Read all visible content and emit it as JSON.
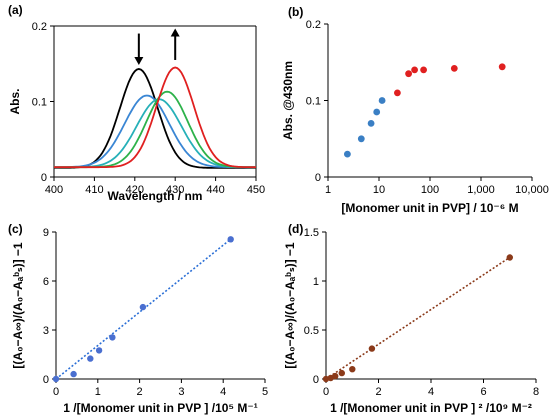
{
  "chart_data": [
    {
      "type": "line",
      "panel_label": "(a)",
      "xlabel": "Wavelength / nm",
      "ylabel": "Abs.",
      "xlim": [
        400,
        450
      ],
      "ylim": [
        0,
        0.2
      ],
      "xticks": [
        400,
        410,
        420,
        430,
        440,
        450
      ],
      "xtick_labels": [
        "400",
        "410",
        "420",
        "430",
        "440",
        "450"
      ],
      "yticks": [
        0,
        0.1,
        0.2
      ],
      "ytick_labels": [
        "0",
        "0.1",
        "0.2"
      ],
      "grid": false,
      "arrows": [
        {
          "direction": "down",
          "x": 421,
          "y_top": 0.19,
          "y_bottom": 0.155
        },
        {
          "direction": "up",
          "x": 430,
          "y_top": 0.19,
          "y_bottom": 0.155
        }
      ],
      "series": [
        {
          "color": "#000000",
          "peak_x": 421,
          "peak_y": 0.143,
          "fwhm": 11,
          "baseline": 0.012
        },
        {
          "color": "#3a86d4",
          "peak_x": 423,
          "peak_y": 0.108,
          "fwhm": 13,
          "baseline": 0.013
        },
        {
          "color": "#26b0b8",
          "peak_x": 426,
          "peak_y": 0.103,
          "fwhm": 13,
          "baseline": 0.013
        },
        {
          "color": "#2db24a",
          "peak_x": 428,
          "peak_y": 0.113,
          "fwhm": 12,
          "baseline": 0.013
        },
        {
          "color": "#e02020",
          "peak_x": 430,
          "peak_y": 0.145,
          "fwhm": 11,
          "baseline": 0.013
        }
      ]
    },
    {
      "type": "scatter",
      "panel_label": "(b)",
      "xlabel": "[Monomer unit in PVP] / 10⁻⁶ M",
      "ylabel": "Abs. @430nm",
      "xscale": "log",
      "xlim": [
        1,
        10000
      ],
      "ylim": [
        0,
        0.2
      ],
      "xticks": [
        1,
        10,
        100,
        1000,
        10000
      ],
      "xtick_labels": [
        "1",
        "10",
        "100",
        "1,000",
        "10,000"
      ],
      "yticks": [
        0,
        0.1,
        0.2
      ],
      "ytick_labels": [
        "0",
        "0.1",
        "0.2"
      ],
      "grid": false,
      "series": [
        {
          "color": "#3a7fc4",
          "x": [
            2.4,
            4.5,
            7,
            9,
            11.5
          ],
          "y": [
            0.03,
            0.05,
            0.07,
            0.085,
            0.1
          ]
        },
        {
          "color": "#e02020",
          "x": [
            23,
            38,
            50,
            75,
            300,
            2600
          ],
          "y": [
            0.11,
            0.135,
            0.14,
            0.14,
            0.142,
            0.144
          ]
        }
      ]
    },
    {
      "type": "scatter",
      "panel_label": "(c)",
      "xlabel": "1 /[Monomer unit in PVP ] /10⁵ M⁻¹",
      "ylabel": "[(A₀−A∞)/(A₀−Aₐᵇₛ)] −1",
      "xlim": [
        0,
        5
      ],
      "ylim": [
        0,
        9
      ],
      "xticks": [
        0,
        1,
        2,
        3,
        4,
        5
      ],
      "xtick_labels": [
        "0",
        "1",
        "2",
        "3",
        "4",
        "5"
      ],
      "yticks": [
        0,
        3,
        6,
        9
      ],
      "ytick_labels": [
        "0",
        "3",
        "6",
        "9"
      ],
      "grid": false,
      "series": [
        {
          "color": "#4a6fd0",
          "x": [
            0,
            0.42,
            0.82,
            1.03,
            1.35,
            2.08,
            4.18
          ],
          "y": [
            0,
            0.3,
            1.25,
            1.75,
            2.55,
            4.4,
            8.55
          ]
        }
      ],
      "fit": {
        "color": "#2b6fd6",
        "x": [
          0,
          4.2
        ],
        "y": [
          0,
          8.6
        ]
      }
    },
    {
      "type": "scatter",
      "panel_label": "(d)",
      "xlabel": "1 /[Monomer unit in PVP ] ² /10⁹ M⁻²",
      "ylabel": "[(A₀−A∞)/(A₀−Aₐᵇₛ)] −1",
      "xlim": [
        0,
        8
      ],
      "ylim": [
        0,
        1.5
      ],
      "xticks": [
        0,
        2,
        4,
        6,
        8
      ],
      "xtick_labels": [
        "0",
        "2",
        "4",
        "6",
        "8"
      ],
      "yticks": [
        0,
        0.5,
        1,
        1.5
      ],
      "ytick_labels": [
        "0",
        "0.5",
        "1",
        "1.5"
      ],
      "grid": false,
      "series": [
        {
          "color": "#8b3a1a",
          "x": [
            0,
            0.18,
            0.35,
            0.6,
            1.0,
            1.75,
            7.0
          ],
          "y": [
            0,
            0.01,
            0.03,
            0.06,
            0.1,
            0.31,
            1.24
          ]
        }
      ],
      "fit": {
        "color": "#8b3a1a",
        "x": [
          0,
          7.05
        ],
        "y": [
          0,
          1.25
        ]
      }
    }
  ]
}
